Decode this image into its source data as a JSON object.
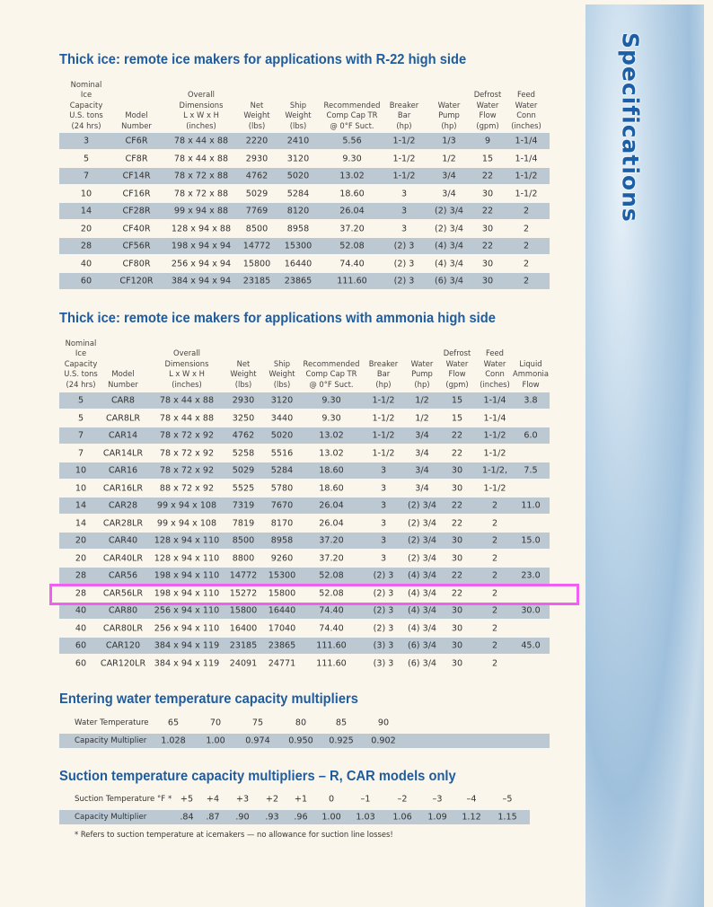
{
  "sidebar": {
    "label": "Specifications"
  },
  "tables": [
    {
      "title": "Thick ice: remote ice makers for applications with R-22 high side",
      "headers": [
        "Nominal\nIce\nCapacity\nU.S. tons\n(24 hrs)",
        "Model\nNumber",
        "Overall\nDimensions\nL x W x H\n(inches)",
        "Net\nWeight\n(lbs)",
        "Ship\nWeight\n(lbs)",
        "Recommended\nComp Cap TR\n@ 0°F Suct.",
        "Breaker\nBar\n(hp)",
        "Water\nPump\n(hp)",
        "Defrost\nWater\nFlow\n(gpm)",
        "Feed\nWater\nConn\n(inches)"
      ],
      "rows": [
        [
          "3",
          "CF6R",
          "78 x 44 x 88",
          "2220",
          "2410",
          "5.56",
          "1-1/2",
          "1/3",
          "9",
          "1-1/4"
        ],
        [
          "5",
          "CF8R",
          "78 x 44 x 88",
          "2930",
          "3120",
          "9.30",
          "1-1/2",
          "1/2",
          "15",
          "1-1/4"
        ],
        [
          "7",
          "CF14R",
          "78 x 72 x 88",
          "4762",
          "5020",
          "13.02",
          "1-1/2",
          "3/4",
          "22",
          "1-1/2"
        ],
        [
          "10",
          "CF16R",
          "78 x 72 x 88",
          "5029",
          "5284",
          "18.60",
          "3",
          "3/4",
          "30",
          "1-1/2"
        ],
        [
          "14",
          "CF28R",
          "99 x 94 x 88",
          "7769",
          "8120",
          "26.04",
          "3",
          "(2) 3/4",
          "22",
          "2"
        ],
        [
          "20",
          "CF40R",
          "128 x 94 x 88",
          "8500",
          "8958",
          "37.20",
          "3",
          "(2) 3/4",
          "30",
          "2"
        ],
        [
          "28",
          "CF56R",
          "198 x 94 x 94",
          "14772",
          "15300",
          "52.08",
          "(2) 3",
          "(4) 3/4",
          "22",
          "2"
        ],
        [
          "40",
          "CF80R",
          "256 x 94 x 94",
          "15800",
          "16440",
          "74.40",
          "(2) 3",
          "(4) 3/4",
          "30",
          "2"
        ],
        [
          "60",
          "CF120R",
          "384 x 94 x 94",
          "23185",
          "23865",
          "111.60",
          "(2) 3",
          "(6) 3/4",
          "30",
          "2"
        ]
      ]
    },
    {
      "title": "Thick ice: remote ice makers for applications with ammonia high side",
      "headers": [
        "Nominal\nIce\nCapacity\nU.S. tons\n(24 hrs)",
        "Model\nNumber",
        "Overall\nDimensions\nL x W x H\n(inches)",
        "Net\nWeight\n(lbs)",
        "Ship\nWeight\n(lbs)",
        "Recommended\nComp Cap TR\n@ 0°F Suct.",
        "Breaker\nBar\n(hp)",
        "Water\nPump\n(hp)",
        "Defrost\nWater\nFlow\n(gpm)",
        "Feed\nWater\nConn\n(inches)",
        "Liquid\nAmmonia\nFlow"
      ],
      "rows": [
        [
          "5",
          "CAR8",
          "78 x 44 x 88",
          "2930",
          "3120",
          "9.30",
          "1-1/2",
          "1/2",
          "15",
          "1-1/4",
          "3.8"
        ],
        [
          "5",
          "CAR8LR",
          "78 x 44 x 88",
          "3250",
          "3440",
          "9.30",
          "1-1/2",
          "1/2",
          "15",
          "1-1/4",
          null
        ],
        [
          "7",
          "CAR14",
          "78 x 72 x 92",
          "4762",
          "5020",
          "13.02",
          "1-1/2",
          "3/4",
          "22",
          "1-1/2",
          "6.0"
        ],
        [
          "7",
          "CAR14LR",
          "78 x 72 x 92",
          "5258",
          "5516",
          "13.02",
          "1-1/2",
          "3/4",
          "22",
          "1-1/2",
          null
        ],
        [
          "10",
          "CAR16",
          "78 x 72 x 92",
          "5029",
          "5284",
          "18.60",
          "3",
          "3/4",
          "30",
          "1-1/2,",
          "7.5"
        ],
        [
          "10",
          "CAR16LR",
          "88 x 72 x 92",
          "5525",
          "5780",
          "18.60",
          "3",
          "3/4",
          "30",
          "1-1/2",
          null
        ],
        [
          "14",
          "CAR28",
          "99 x 94 x 108",
          "7319",
          "7670",
          "26.04",
          "3",
          "(2) 3/4",
          "22",
          "2",
          "11.0"
        ],
        [
          "14",
          "CAR28LR",
          "99 x 94 x 108",
          "7819",
          "8170",
          "26.04",
          "3",
          "(2) 3/4",
          "22",
          "2",
          null
        ],
        [
          "20",
          "CAR40",
          "128 x 94 x 110",
          "8500",
          "8958",
          "37.20",
          "3",
          "(2) 3/4",
          "30",
          "2",
          "15.0"
        ],
        [
          "20",
          "CAR40LR",
          "128 x 94 x 110",
          "8800",
          "9260",
          "37.20",
          "3",
          "(2) 3/4",
          "30",
          "2",
          null
        ],
        [
          "28",
          "CAR56",
          "198 x 94 x 110",
          "14772",
          "15300",
          "52.08",
          "(2) 3",
          "(4) 3/4",
          "22",
          "2",
          "23.0"
        ],
        [
          "28",
          "CAR56LR",
          "198 x 94 x 110",
          "15272",
          "15800",
          "52.08",
          "(2) 3",
          "(4) 3/4",
          "22",
          "2",
          null
        ],
        [
          "40",
          "CAR80",
          "256 x 94 x 110",
          "15800",
          "16440",
          "74.40",
          "(2) 3",
          "(4) 3/4",
          "30",
          "2",
          "30.0"
        ],
        [
          "40",
          "CAR80LR",
          "256 x 94 x 110",
          "16400",
          "17040",
          "74.40",
          "(2) 3",
          "(4) 3/4",
          "30",
          "2",
          null
        ],
        [
          "60",
          "CAR120",
          "384 x 94 x 119",
          "23185",
          "23865",
          "111.60",
          "(3) 3",
          "(6) 3/4",
          "30",
          "2",
          "45.0"
        ],
        [
          "60",
          "CAR120LR",
          "384 x 94 x 119",
          "24091",
          "24771",
          "111.60",
          "(3) 3",
          "(6) 3/4",
          "30",
          "2",
          null
        ]
      ]
    }
  ],
  "multipliers": [
    {
      "title": "Entering water temperature capacity multipliers",
      "rows": [
        {
          "label": "Water Temperature",
          "values": [
            "65",
            "70",
            "75",
            "80",
            "85",
            "90"
          ]
        },
        {
          "label": "Capacity Multiplier",
          "values": [
            "1.028",
            "1.00",
            "0.974",
            "0.950",
            "0.925",
            "0.902"
          ]
        }
      ]
    },
    {
      "title": "Suction temperature capacity multipliers – R, CAR models only",
      "rows": [
        {
          "label": "Suction Temperature °F *",
          "values": [
            "+5",
            "+4",
            "+3",
            "+2",
            "+1",
            "0",
            "–1",
            "–2",
            "–3",
            "–4",
            "–5"
          ]
        },
        {
          "label": "Capacity Multiplier",
          "values": [
            ".84",
            ".87",
            ".90",
            ".93",
            ".96",
            "1.00",
            "1.03",
            "1.06",
            "1.09",
            "1.12",
            "1.15"
          ]
        }
      ],
      "footnote": "* Refers to suction temperature at icemakers — no allowance for suction line losses!"
    }
  ]
}
